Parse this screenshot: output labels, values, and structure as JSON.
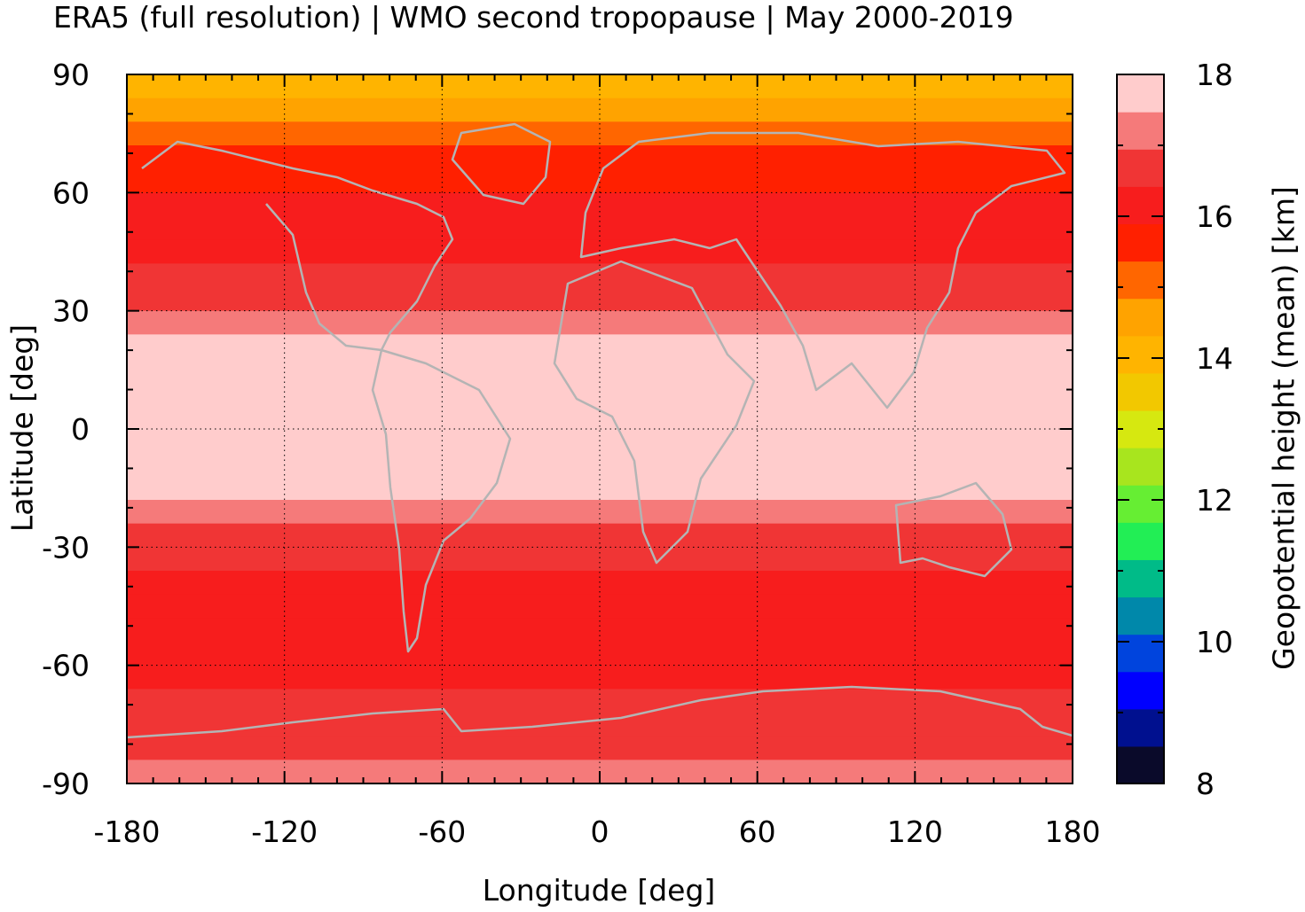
{
  "chart_data": {
    "type": "heatmap",
    "title": "ERA5 (full resolution) | WMO second tropopause | May 2000-2019",
    "xlabel": "Longitude [deg]",
    "ylabel": "Latitude [deg]",
    "colorbar_label": "Geopotential height (mean) [km]",
    "xlim": [
      -180,
      180
    ],
    "ylim": [
      -90,
      90
    ],
    "xticks": [
      -180,
      -120,
      -60,
      0,
      60,
      120,
      180
    ],
    "yticks": [
      90,
      60,
      30,
      0,
      -30,
      -60,
      -90
    ],
    "colorbar_range": [
      8,
      18
    ],
    "colorbar_ticks": [
      18,
      16,
      14,
      12,
      10,
      8
    ],
    "colorbar_colors": [
      "#0a0a2a",
      "#00108f",
      "#0000ff",
      "#0044dd",
      "#0088aa",
      "#00bb88",
      "#22ee55",
      "#66ee33",
      "#a8e51e",
      "#d6e810",
      "#f2c800",
      "#ffb400",
      "#ffa300",
      "#ff6600",
      "#ff2000",
      "#f71d1d",
      "#f03535",
      "#f57a7a",
      "#ffcccc"
    ],
    "grid": true,
    "zonal_profile": {
      "latitude": [
        90,
        84,
        78,
        72,
        66,
        60,
        54,
        48,
        42,
        36,
        30,
        24,
        18,
        12,
        6,
        0,
        -6,
        -12,
        -18,
        -24,
        -30,
        -36,
        -42,
        -48,
        -54,
        -60,
        -66,
        -72,
        -78,
        -84,
        -90
      ],
      "height_km": [
        13.8,
        14.5,
        15.0,
        15.3,
        15.6,
        16.0,
        16.2,
        16.3,
        16.4,
        16.6,
        17.0,
        17.5,
        17.8,
        18.0,
        18.0,
        18.0,
        18.0,
        17.9,
        17.5,
        17.0,
        16.6,
        16.4,
        16.2,
        16.1,
        16.0,
        16.1,
        16.4,
        16.5,
        16.7,
        17.0,
        17.4
      ]
    }
  },
  "colors": {
    "coastline": "#b4b4b4",
    "background": "#ffffff"
  }
}
